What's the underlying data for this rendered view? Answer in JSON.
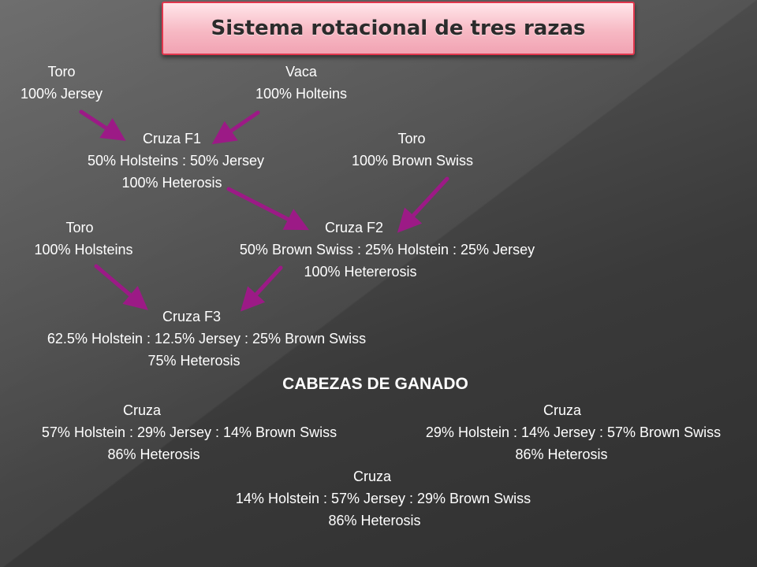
{
  "title": "Sistema rotacional de tres razas",
  "colors": {
    "arrow": "#9c1a86",
    "title_border": "#e0364d",
    "title_fill": "#f7b9c4"
  },
  "icons": [
    "arrow-icon"
  ],
  "nodes": {
    "toro1": {
      "label": "Toro",
      "line1": "100% Jersey"
    },
    "vaca": {
      "label": "Vaca",
      "line1": "100% Holteins"
    },
    "f1": {
      "label": "Cruza F1",
      "line1": "50% Holsteins : 50% Jersey",
      "line2": "100% Heterosis"
    },
    "toro2": {
      "label": "Toro",
      "line1": "100% Brown Swiss"
    },
    "toro3": {
      "label": "Toro",
      "line1": "100% Holsteins"
    },
    "f2": {
      "label": "Cruza F2",
      "line1": "50% Brown Swiss : 25% Holstein : 25% Jersey",
      "line2": "100% Hetererosis"
    },
    "f3": {
      "label": "Cruza F3",
      "line1": "62.5% Holstein : 12.5% Jersey : 25% Brown Swiss",
      "line2": "75% Heterosis"
    }
  },
  "cabezas": {
    "heading": "CABEZAS DE GANADO",
    "items": [
      {
        "label": "Cruza",
        "line1": "57% Holstein : 29% Jersey : 14% Brown Swiss",
        "line2": "86% Heterosis"
      },
      {
        "label": "Cruza",
        "line1": "29% Holstein : 14% Jersey : 57% Brown Swiss",
        "line2": "86% Heterosis"
      },
      {
        "label": "Cruza",
        "line1": "14% Holstein : 57% Jersey : 29% Brown Swiss",
        "line2": "86% Heterosis"
      }
    ]
  }
}
